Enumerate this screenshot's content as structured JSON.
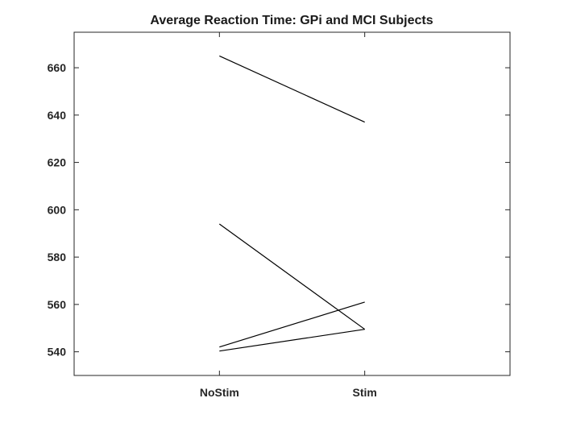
{
  "chart_data": {
    "type": "line",
    "title": "Average Reaction Time: GPi and MCI Subjects",
    "xlabel": "",
    "ylabel": "",
    "categories": [
      "NoStim",
      "Stim"
    ],
    "xlim": [
      0,
      3
    ],
    "ylim": [
      530,
      675
    ],
    "yticks": [
      540,
      560,
      580,
      600,
      620,
      640,
      660
    ],
    "grid": false,
    "legend": "none",
    "series": [
      {
        "values": [
          665,
          637
        ]
      },
      {
        "values": [
          594,
          549.5
        ]
      },
      {
        "values": [
          542,
          561
        ]
      },
      {
        "values": [
          540.3,
          549.5
        ]
      }
    ],
    "line_color": "#000000"
  }
}
